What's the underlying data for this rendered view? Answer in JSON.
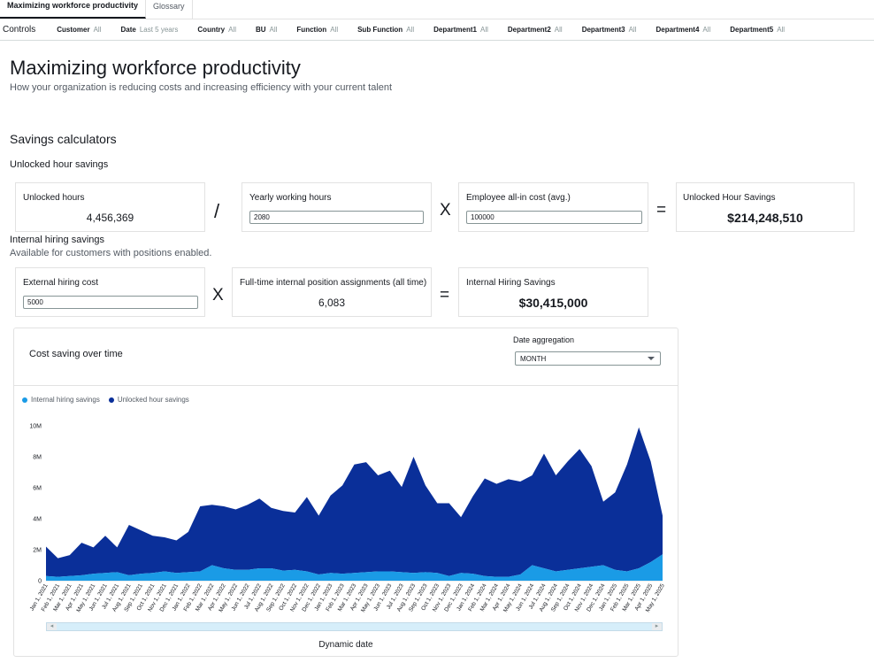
{
  "tabs": [
    {
      "label": "Maximizing workforce productivity",
      "active": true
    },
    {
      "label": "Glossary",
      "active": false
    }
  ],
  "controls": {
    "label": "Controls",
    "filters": [
      {
        "name": "Customer",
        "value": "All"
      },
      {
        "name": "Date",
        "value": "Last 5 years"
      },
      {
        "name": "Country",
        "value": "All"
      },
      {
        "name": "BU",
        "value": "All"
      },
      {
        "name": "Function",
        "value": "All"
      },
      {
        "name": "Sub Function",
        "value": "All"
      },
      {
        "name": "Department1",
        "value": "All"
      },
      {
        "name": "Department2",
        "value": "All"
      },
      {
        "name": "Department3",
        "value": "All"
      },
      {
        "name": "Department4",
        "value": "All"
      },
      {
        "name": "Department5",
        "value": "All"
      }
    ]
  },
  "page": {
    "title": "Maximizing workforce productivity",
    "subtitle": "How your organization is reducing costs and increasing efficiency with your current talent"
  },
  "savings": {
    "section_title": "Savings calculators",
    "unlocked": {
      "heading": "Unlocked hour savings",
      "hours_label": "Unlocked hours",
      "hours_value": "4,456,369",
      "op1": "/",
      "yearly_label": "Yearly working hours",
      "yearly_value": "2080",
      "op2": "X",
      "cost_label": "Employee all-in cost (avg.)",
      "cost_value": "100000",
      "op3": "=",
      "result_label": "Unlocked Hour Savings",
      "result_value": "$214,248,510"
    },
    "hiring": {
      "heading": "Internal hiring savings",
      "note": "Available for customers with positions enabled.",
      "external_label": "External hiring cost",
      "external_value": "5000",
      "op1": "X",
      "assign_label": "Full-time internal position assignments (all time)",
      "assign_value": "6,083",
      "op2": "=",
      "result_label": "Internal Hiring Savings",
      "result_value": "$30,415,000"
    }
  },
  "chart_panel": {
    "title": "Cost saving over time",
    "agg_label": "Date aggregation",
    "agg_value": "MONTH",
    "x_axis_label": "Dynamic date",
    "colors": {
      "internal": "#1a9be6",
      "unlocked": "#0a2f99"
    }
  },
  "chart_data": {
    "type": "area",
    "stacked": true,
    "ylim": [
      0,
      10000000
    ],
    "y_ticks": [
      "0",
      "2M",
      "4M",
      "6M",
      "8M",
      "10M"
    ],
    "x_tick_labels": [
      "Jan 1, 2021",
      "Feb 1, 2021",
      "Mar 1, 2021",
      "Apr 1, 2021",
      "May 1, 2021",
      "Jun 1, 2021",
      "Jul 1, 2021",
      "Aug 1, 2021",
      "Sep 1, 2021",
      "Oct 1, 2021",
      "Nov 1, 2021",
      "Dec 1, 2021",
      "Jan 1, 2022",
      "Feb 1, 2022",
      "Mar 1, 2022",
      "Apr 1, 2022",
      "May 1, 2022",
      "Jun 1, 2022",
      "Jul 1, 2022",
      "Aug 1, 2022",
      "Sep 1, 2022",
      "Oct 1, 2022",
      "Nov 1, 2022",
      "Dec 1, 2022",
      "Jan 1, 2023",
      "Feb 1, 2023",
      "Mar 1, 2023",
      "Apr 1, 2023",
      "May 1, 2023",
      "Jun 1, 2023",
      "Jul 1, 2023",
      "Aug 1, 2023",
      "Sep 1, 2023",
      "Oct 1, 2023",
      "Nov 1, 2023",
      "Dec 1, 2023",
      "Jan 1, 2024",
      "Feb 1, 2024",
      "Mar 1, 2024",
      "Apr 1, 2024",
      "May 1, 2024",
      "Jun 1, 2024",
      "Jul 1, 2024",
      "Aug 1, 2024",
      "Sep 1, 2024",
      "Oct 1, 2024",
      "Nov 1, 2024",
      "Dec 1, 2024",
      "Jan 1, 2025",
      "Feb 1, 2025",
      "Mar 1, 2025",
      "Apr 1, 2025",
      "May 1, 2025"
    ],
    "series": [
      {
        "name": "Internal hiring savings",
        "values": [
          300000,
          250000,
          300000,
          350000,
          450000,
          500000,
          550000,
          350000,
          450000,
          500000,
          600000,
          500000,
          550000,
          600000,
          1000000,
          800000,
          700000,
          700000,
          800000,
          800000,
          650000,
          700000,
          600000,
          400000,
          500000,
          450000,
          500000,
          550000,
          600000,
          600000,
          550000,
          500000,
          550000,
          500000,
          300000,
          500000,
          450000,
          300000,
          250000,
          250000,
          400000,
          1000000,
          800000,
          600000,
          700000,
          800000,
          900000,
          1000000,
          700000,
          600000,
          800000,
          1200000,
          1700000
        ]
      },
      {
        "name": "Unlocked hour savings",
        "values": [
          1900000,
          1200000,
          1350000,
          2100000,
          1700000,
          2400000,
          1600000,
          3250000,
          2800000,
          2400000,
          2200000,
          2100000,
          2600000,
          4200000,
          3900000,
          4000000,
          3900000,
          4200000,
          4500000,
          3900000,
          3850000,
          3700000,
          4800000,
          3800000,
          5000000,
          5700000,
          7000000,
          7100000,
          6200000,
          6500000,
          5500000,
          7500000,
          5600000,
          4500000,
          4700000,
          3600000,
          5000000,
          6300000,
          6000000,
          6300000,
          6000000,
          5800000,
          7400000,
          6200000,
          7000000,
          7700000,
          6500000,
          4100000,
          5000000,
          6900000,
          9100000,
          6500000,
          2500000
        ]
      }
    ],
    "legend_position": "top-left",
    "grid": false
  }
}
